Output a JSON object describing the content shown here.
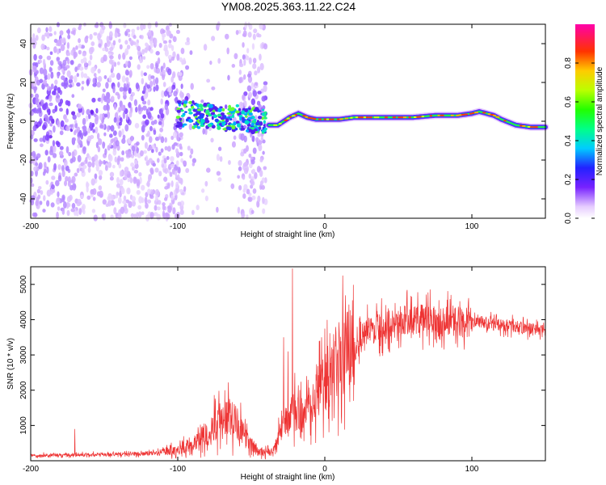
{
  "title": "YM08.2025.363.11.22.C24",
  "chart_data": [
    {
      "type": "heatmap",
      "name": "spectrogram",
      "xlabel": "Height of straight line (km)",
      "ylabel": "Frequency (Hz)",
      "xlim": [
        -200,
        150
      ],
      "ylim": [
        -50,
        50
      ],
      "xticks": [
        -200,
        -100,
        0,
        100
      ],
      "yticks": [
        -40,
        -20,
        0,
        20,
        40
      ],
      "colorbar": {
        "label": "Normalized spectral amplitude",
        "range": [
          0,
          1
        ],
        "ticks": [
          0.0,
          0.2,
          0.4,
          0.6,
          0.8
        ],
        "tick_labels": [
          "0.0",
          "0.2",
          "0.4",
          "0.6",
          "0.8"
        ]
      },
      "ridge": {
        "description": "dominant frequency track (Hz) vs height (km)",
        "points": [
          [
            -38,
            -2
          ],
          [
            -32,
            -2
          ],
          [
            -28,
            0
          ],
          [
            -24,
            2
          ],
          [
            -18,
            4
          ],
          [
            -12,
            2
          ],
          [
            -6,
            1
          ],
          [
            0,
            1
          ],
          [
            10,
            1
          ],
          [
            20,
            2
          ],
          [
            40,
            2
          ],
          [
            60,
            2
          ],
          [
            75,
            3
          ],
          [
            90,
            3
          ],
          [
            100,
            4
          ],
          [
            105,
            5
          ],
          [
            115,
            3
          ],
          [
            120,
            1
          ],
          [
            130,
            -2
          ],
          [
            140,
            -3
          ],
          [
            150,
            -3
          ]
        ]
      },
      "noise_band": {
        "x_range": [
          -200,
          -40
        ],
        "y_range": [
          -50,
          50
        ]
      },
      "cluster": {
        "x_range": [
          -100,
          -40
        ],
        "center_hz": 4,
        "spread_hz": 6
      }
    },
    {
      "type": "line",
      "name": "snr",
      "xlabel": "Height of straight line (km)",
      "ylabel": "SNR (10 * v/v)",
      "xlim": [
        -200,
        150
      ],
      "ylim": [
        0,
        5500
      ],
      "xticks": [
        -200,
        -100,
        0,
        100
      ],
      "yticks": [
        1000,
        2000,
        3000,
        4000,
        5000
      ],
      "color": "#ee3333",
      "envelope": [
        [
          -200,
          150
        ],
        [
          -160,
          170
        ],
        [
          -120,
          200
        ],
        [
          -100,
          300
        ],
        [
          -90,
          500
        ],
        [
          -80,
          800
        ],
        [
          -70,
          1200
        ],
        [
          -62,
          1300
        ],
        [
          -55,
          700
        ],
        [
          -45,
          250
        ],
        [
          -35,
          250
        ],
        [
          -28,
          1100
        ],
        [
          -20,
          1400
        ],
        [
          -15,
          1300
        ],
        [
          -10,
          1800
        ],
        [
          0,
          2200
        ],
        [
          10,
          2900
        ],
        [
          20,
          3300
        ],
        [
          30,
          3700
        ],
        [
          40,
          3800
        ],
        [
          50,
          3950
        ],
        [
          60,
          4000
        ],
        [
          70,
          4000
        ],
        [
          80,
          3950
        ],
        [
          90,
          3950
        ],
        [
          100,
          3900
        ],
        [
          110,
          3900
        ],
        [
          120,
          3850
        ],
        [
          130,
          3800
        ],
        [
          140,
          3750
        ],
        [
          150,
          3700
        ]
      ],
      "spikes": [
        [
          -170,
          900
        ],
        [
          -22,
          5450
        ],
        [
          -25,
          3100
        ],
        [
          -28,
          3500
        ]
      ]
    }
  ]
}
